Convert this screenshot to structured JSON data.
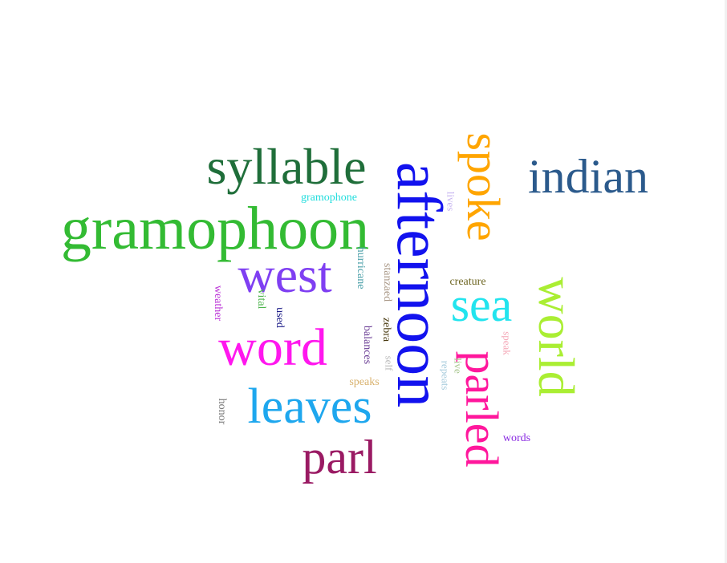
{
  "cloud": {
    "words": [
      {
        "text": "afternoon",
        "color": "#1212ee",
        "rotated": true
      },
      {
        "text": "gramophoon",
        "color": "#33bb33",
        "rotated": false
      },
      {
        "text": "syllable",
        "color": "#1f6e3a",
        "rotated": false
      },
      {
        "text": "spoke",
        "color": "#ffa500",
        "rotated": true
      },
      {
        "text": "indian",
        "color": "#2b5a8c",
        "rotated": false
      },
      {
        "text": "west",
        "color": "#7f3ff2",
        "rotated": false
      },
      {
        "text": "world",
        "color": "#aaee33",
        "rotated": true
      },
      {
        "text": "sea",
        "color": "#22e4ee",
        "rotated": false
      },
      {
        "text": "word",
        "color": "#ff17ee",
        "rotated": false
      },
      {
        "text": "parled",
        "color": "#ff179c",
        "rotated": true
      },
      {
        "text": "leaves",
        "color": "#1ea7ee",
        "rotated": false
      },
      {
        "text": "parl",
        "color": "#9a1a63",
        "rotated": false
      },
      {
        "text": "gramophone",
        "color": "#22dddd",
        "rotated": false
      },
      {
        "text": "lives",
        "color": "#c6b4f0",
        "rotated": true
      },
      {
        "text": "hurricane",
        "color": "#4a9fa8",
        "rotated": true
      },
      {
        "text": "stanzaed",
        "color": "#aa9988",
        "rotated": true
      },
      {
        "text": "creature",
        "color": "#6e6623",
        "rotated": false
      },
      {
        "text": "weather",
        "color": "#ba33d6",
        "rotated": true
      },
      {
        "text": "vital",
        "color": "#4bb34b",
        "rotated": true
      },
      {
        "text": "used",
        "color": "#1b1b87",
        "rotated": true
      },
      {
        "text": "balances",
        "color": "#6a3d94",
        "rotated": true
      },
      {
        "text": "zebra",
        "color": "#4a3b12",
        "rotated": true
      },
      {
        "text": "self",
        "color": "#bbbbbb",
        "rotated": true
      },
      {
        "text": "speak",
        "color": "#f4a5b5",
        "rotated": true
      },
      {
        "text": "live",
        "color": "#a6c58c",
        "rotated": true
      },
      {
        "text": "repeats",
        "color": "#a6cbdc",
        "rotated": true
      },
      {
        "text": "speaks",
        "color": "#d9b26e",
        "rotated": false
      },
      {
        "text": "honor",
        "color": "#7a7a7a",
        "rotated": true
      },
      {
        "text": "words",
        "color": "#8a2be2",
        "rotated": false
      }
    ]
  }
}
